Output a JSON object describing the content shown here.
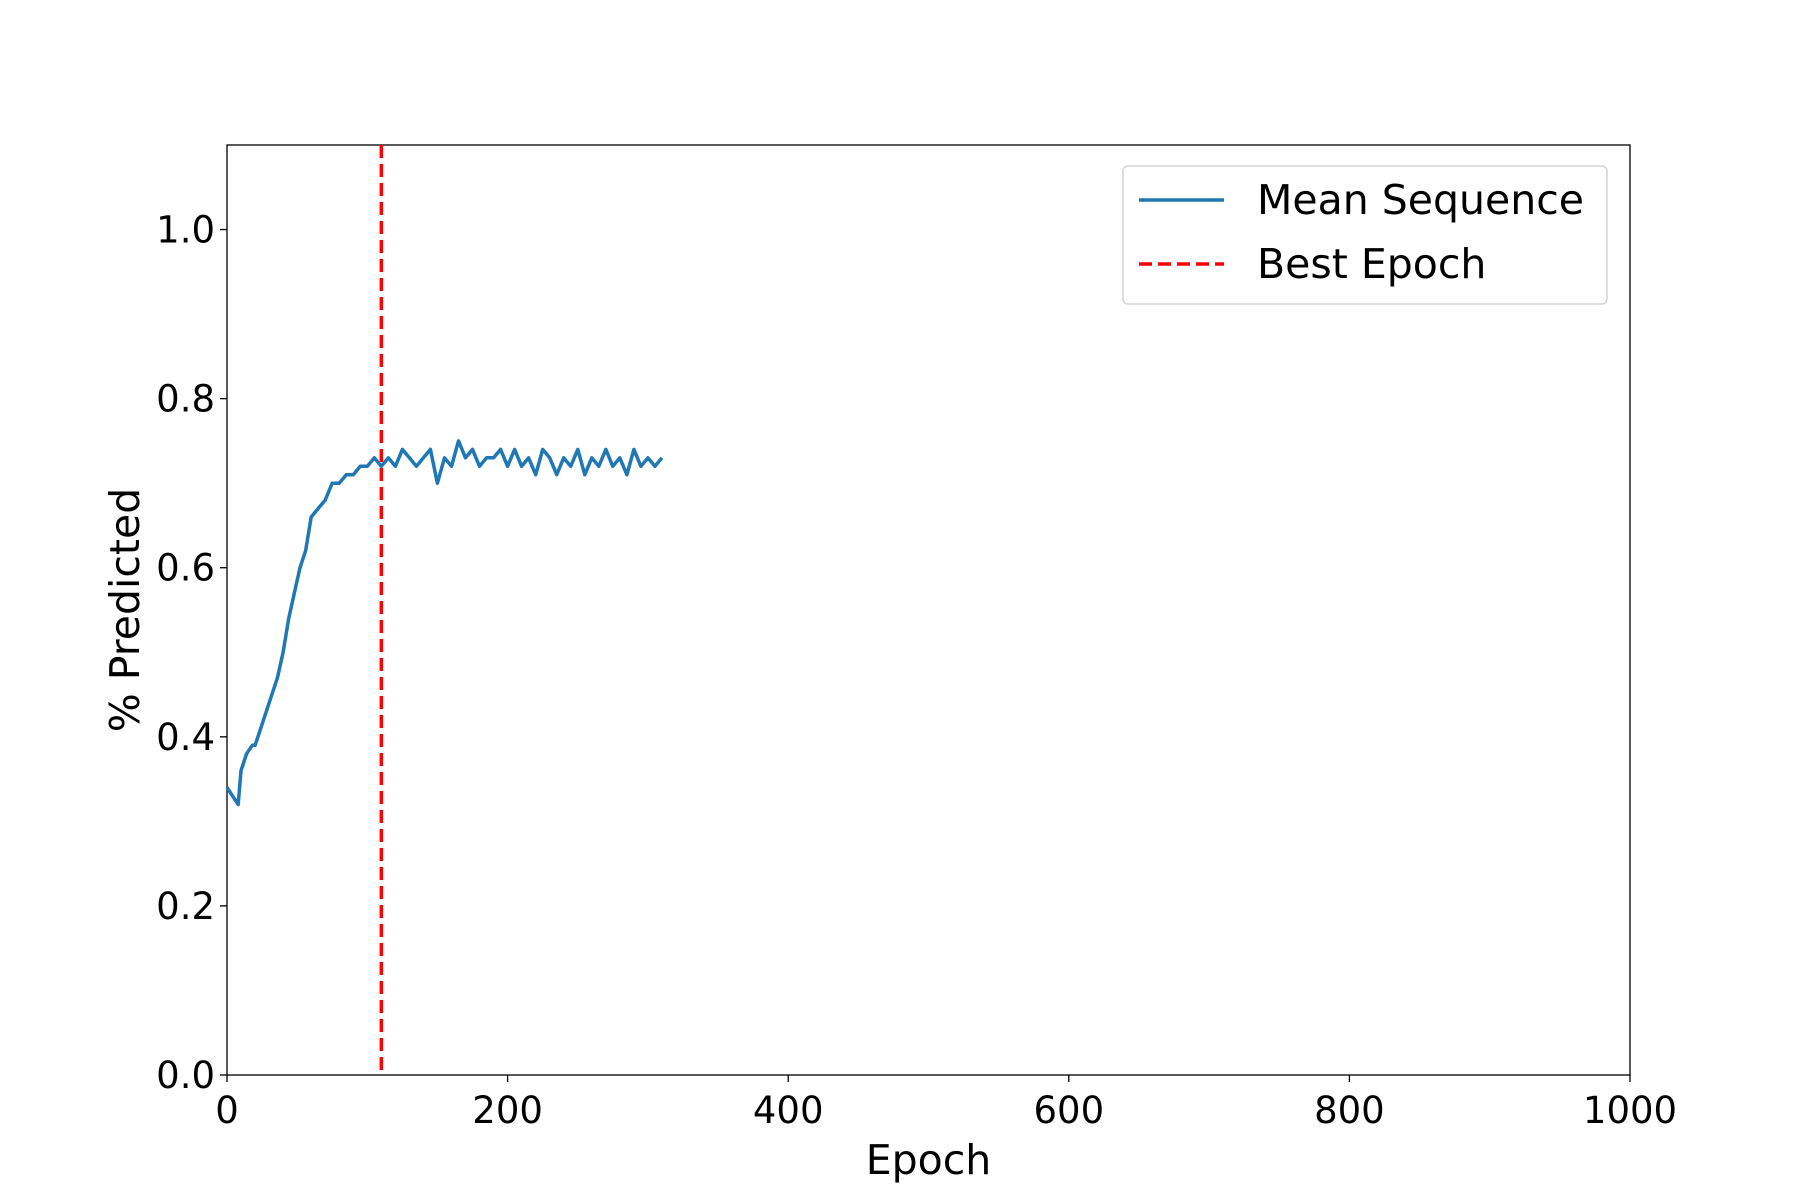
{
  "chart_data": {
    "type": "line",
    "title": "",
    "xlabel": "Epoch",
    "ylabel": "% Predicted",
    "xlim": [
      0,
      1000
    ],
    "ylim": [
      0,
      1.1
    ],
    "xticks": [
      0,
      200,
      400,
      600,
      800,
      1000
    ],
    "yticks": [
      0.0,
      0.2,
      0.4,
      0.6,
      0.8,
      1.0
    ],
    "xtick_labels": [
      "0",
      "200",
      "400",
      "600",
      "800",
      "1000"
    ],
    "ytick_labels": [
      "0.0",
      "0.2",
      "0.4",
      "0.6",
      "0.8",
      "1.0"
    ],
    "grid": false,
    "legend_position": "top-right",
    "series": [
      {
        "name": "Mean Sequence",
        "color": "#1f77b4",
        "x": [
          0,
          4,
          8,
          10,
          14,
          18,
          20,
          24,
          28,
          32,
          36,
          40,
          44,
          48,
          52,
          56,
          60,
          65,
          70,
          75,
          80,
          85,
          90,
          95,
          100,
          105,
          110,
          115,
          120,
          125,
          130,
          135,
          140,
          145,
          150,
          155,
          160,
          165,
          170,
          175,
          180,
          185,
          190,
          195,
          200,
          205,
          210,
          215,
          220,
          225,
          230,
          235,
          240,
          245,
          250,
          255,
          260,
          265,
          270,
          275,
          280,
          285,
          290,
          295,
          300,
          305,
          310
        ],
        "y": [
          0.34,
          0.33,
          0.32,
          0.36,
          0.38,
          0.39,
          0.39,
          0.41,
          0.43,
          0.45,
          0.47,
          0.5,
          0.54,
          0.57,
          0.6,
          0.62,
          0.66,
          0.67,
          0.68,
          0.7,
          0.7,
          0.71,
          0.71,
          0.72,
          0.72,
          0.73,
          0.72,
          0.73,
          0.72,
          0.74,
          0.73,
          0.72,
          0.73,
          0.74,
          0.7,
          0.73,
          0.72,
          0.75,
          0.73,
          0.74,
          0.72,
          0.73,
          0.73,
          0.74,
          0.72,
          0.74,
          0.72,
          0.73,
          0.71,
          0.74,
          0.73,
          0.71,
          0.73,
          0.72,
          0.74,
          0.71,
          0.73,
          0.72,
          0.74,
          0.72,
          0.73,
          0.71,
          0.74,
          0.72,
          0.73,
          0.72,
          0.73
        ]
      },
      {
        "name": "Best Epoch",
        "color": "#ff0000",
        "style": "dashed",
        "x": 110
      }
    ]
  }
}
